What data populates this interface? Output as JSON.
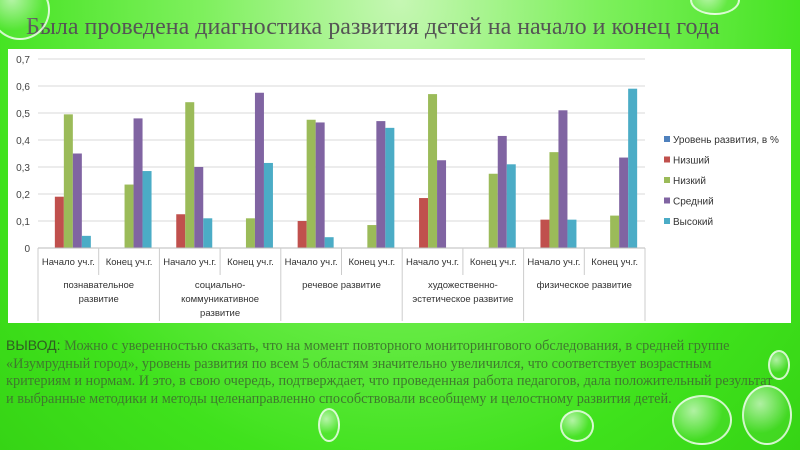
{
  "title": "Была проведена диагностика развития детей на начало и конец года",
  "conclusion": {
    "lead": "ВЫВОД:",
    "text": " Можно с уверенностью сказать, что на момент повторного мониторингового обследования,  в средней группе «Изумрудный город», уровень развития по всем 5 областям значительно увеличился, что соответствует возрастным критериям и нормам. И это, в свою очередь, подтверждает,  что проведенная работа педагогов, дала положительный результат и выбранные методики и методы целенаправленно способствовали всеобщему и целостному развития детей."
  },
  "chart_data": {
    "type": "bar",
    "title": "",
    "xlabel": "",
    "ylabel": "",
    "ylim": [
      0,
      0.7
    ],
    "yticks": [
      "0",
      "0,1",
      "0,2",
      "0,3",
      "0,4",
      "0,5",
      "0,6",
      "0,7"
    ],
    "grid": true,
    "legend_position": "right",
    "groups": [
      "познавательное развитие",
      "социально-коммуникативное развитие",
      "речевое развитие",
      "художественно-эстетическое развитие",
      "физическое развитие"
    ],
    "categories": [
      "Начало уч.г.",
      "Конец уч.г.",
      "Начало уч.г.",
      "Конец уч.г.",
      "Начало уч.г.",
      "Конец уч.г.",
      "Начало уч.г.",
      "Конец уч.г.",
      "Начало уч.г.",
      "Конец уч.г."
    ],
    "series": [
      {
        "name": "Уровень развития, в %",
        "color": "#4f81bd",
        "values": [
          0,
          0,
          0,
          0,
          0,
          0,
          0,
          0,
          0,
          0
        ]
      },
      {
        "name": "Низший",
        "color": "#c0504d",
        "values": [
          0.19,
          0,
          0.125,
          0,
          0.1,
          0,
          0.185,
          0,
          0.105,
          0
        ]
      },
      {
        "name": "Низкий",
        "color": "#9bbb59",
        "values": [
          0.495,
          0.235,
          0.54,
          0.11,
          0.475,
          0.085,
          0.57,
          0.275,
          0.355,
          0.12
        ]
      },
      {
        "name": "Средний",
        "color": "#8064a2",
        "values": [
          0.35,
          0.48,
          0.3,
          0.575,
          0.465,
          0.47,
          0.325,
          0.415,
          0.51,
          0.335
        ]
      },
      {
        "name": "Высокий",
        "color": "#4bacc6",
        "values": [
          0.045,
          0.285,
          0.11,
          0.315,
          0.04,
          0.445,
          0,
          0.31,
          0.105,
          0.59
        ]
      }
    ]
  }
}
